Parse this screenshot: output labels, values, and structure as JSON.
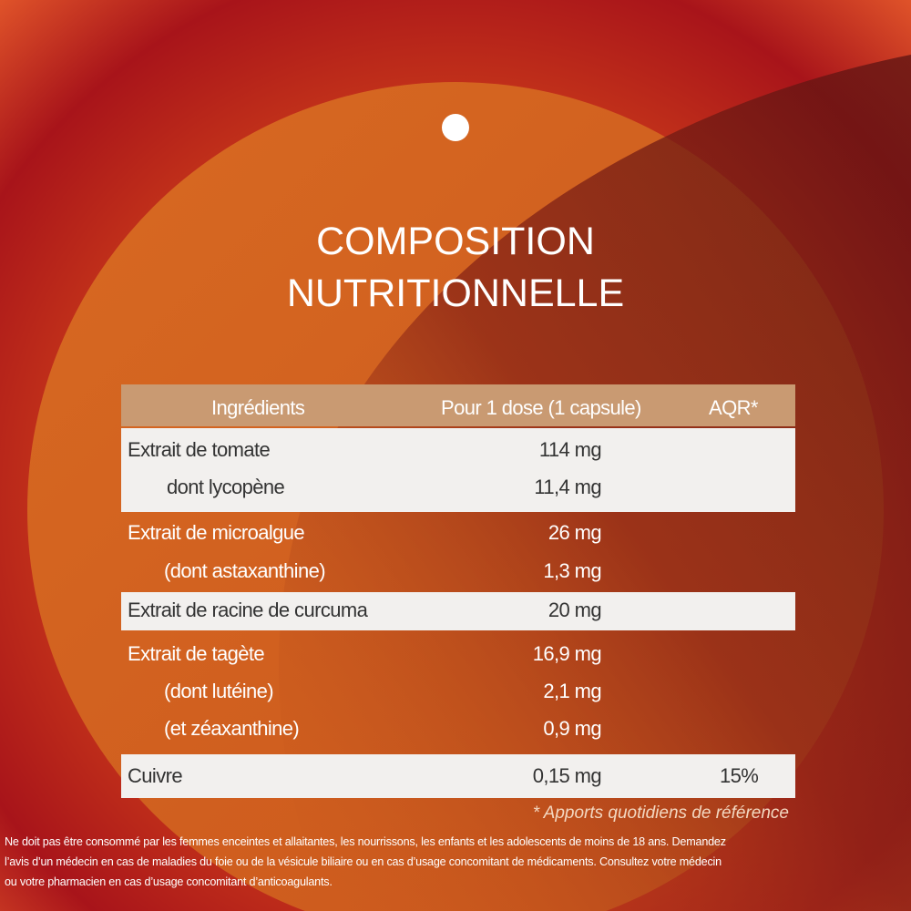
{
  "title": [
    "COMPOSITION",
    "NUTRITIONNELLE"
  ],
  "table": {
    "header": [
      "Ingrédients",
      "Pour 1 dose (1 capsule)",
      "AQR*"
    ],
    "groups": [
      {
        "lines": [
          {
            "name": "Extrait de tomate",
            "dose": "114 mg"
          },
          {
            "name": "dont lycopène",
            "dose": "11,4 mg"
          }
        ]
      },
      {
        "lines": [
          {
            "name": "Extrait de microalgue",
            "dose": "26 mg"
          },
          {
            "name": "(dont astaxanthine)",
            "dose": "1,3 mg"
          }
        ]
      },
      {
        "lines": [
          {
            "name": "Extrait de racine de curcuma",
            "dose": "20 mg"
          }
        ]
      },
      {
        "lines": [
          {
            "name": "Extrait de tagète",
            "dose": "16,9 mg"
          },
          {
            "name": "(dont lutéine)",
            "dose": "2,1 mg"
          },
          {
            "name": "(et zéaxanthine)",
            "dose": "0,9 mg"
          }
        ]
      },
      {
        "lines": [
          {
            "name": "Cuivre",
            "dose": "0,15 mg",
            "aqr": "15%"
          }
        ]
      }
    ]
  },
  "footnote": "* Apports quotidiens de référence",
  "disclaimer": [
    "Ne doit pas être consommé par les femmes enceintes et allaitantes, les nourrissons, les enfants et les adolescents de moins de 18 ans. Demandez",
    "l’avis d’un médecin en cas de maladies du foie ou de la vésicule biliaire ou en cas d’usage concomitant de médicaments. Consultez votre médecin",
    "ou votre pharmacien en cas d’usage concomitant d’anticoagulants."
  ]
}
